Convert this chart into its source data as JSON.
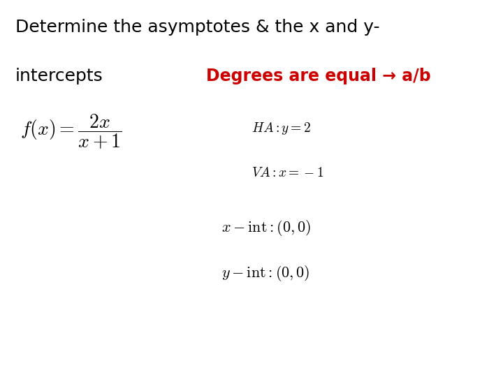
{
  "background_color": "#ffffff",
  "title_line1": "Determine the asymptotes & the x and y-",
  "title_line2": "intercepts",
  "title_fontsize": 18,
  "title_color": "#000000",
  "title_font": "DejaVu Sans",
  "degrees_text": "Degrees are equal → a/b",
  "degrees_color": "#cc0000",
  "degrees_fontsize": 17,
  "math_color": "#000000",
  "func_fontsize": 20,
  "ha_fontsize": 14,
  "va_fontsize": 14,
  "int_fontsize": 16
}
